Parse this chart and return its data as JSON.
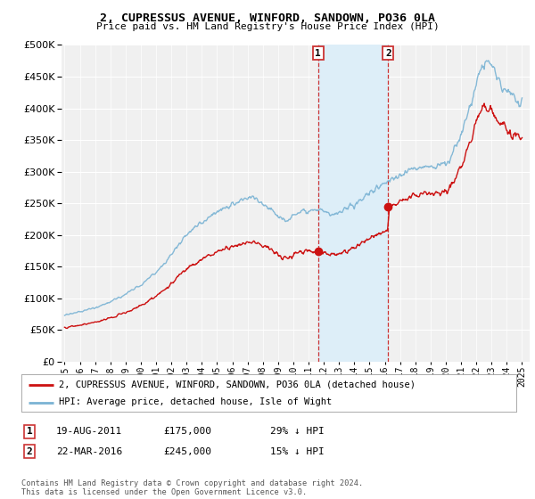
{
  "title": "2, CUPRESSUS AVENUE, WINFORD, SANDOWN, PO36 0LA",
  "subtitle": "Price paid vs. HM Land Registry's House Price Index (HPI)",
  "ylim": [
    0,
    500000
  ],
  "ytick_vals": [
    0,
    50000,
    100000,
    150000,
    200000,
    250000,
    300000,
    350000,
    400000,
    450000,
    500000
  ],
  "sale1": {
    "date_num": 2011.63,
    "price": 175000,
    "label": "1",
    "date_str": "19-AUG-2011",
    "price_str": "£175,000",
    "note": "29% ↓ HPI"
  },
  "sale2": {
    "date_num": 2016.22,
    "price": 245000,
    "label": "2",
    "date_str": "22-MAR-2016",
    "price_str": "£245,000",
    "note": "15% ↓ HPI"
  },
  "hpi_color": "#7ab3d4",
  "sale_color": "#cc1111",
  "box1_color": "#ddeef8",
  "background_color": "#f0f0f0",
  "legend_label_sale": "2, CUPRESSUS AVENUE, WINFORD, SANDOWN, PO36 0LA (detached house)",
  "legend_label_hpi": "HPI: Average price, detached house, Isle of Wight",
  "footer": "Contains HM Land Registry data © Crown copyright and database right 2024.\nThis data is licensed under the Open Government Licence v3.0.",
  "xmin": 1994.8,
  "xmax": 2025.5
}
